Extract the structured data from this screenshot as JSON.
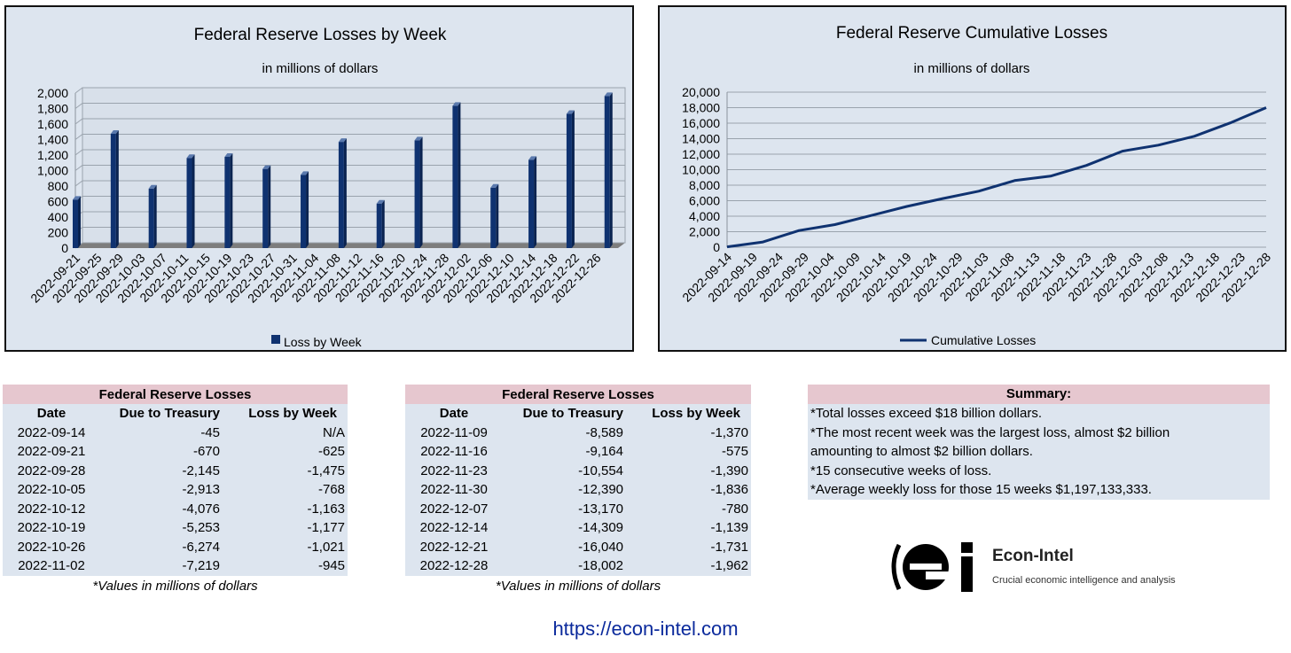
{
  "colors": {
    "bar": "#0f3270",
    "line": "#0f3270",
    "panel_bg": "#dde5ef",
    "header_bg": "#e6c7cf",
    "link": "#0b2a9c"
  },
  "chart_data": [
    {
      "type": "bar",
      "title": "Federal Reserve Losses by Week",
      "subtitle": "in millions of dollars",
      "categories": [
        "2022-09-21",
        "2022-09-25",
        "2022-09-29",
        "2022-10-03",
        "2022-10-07",
        "2022-10-11",
        "2022-10-15",
        "2022-10-19",
        "2022-10-23",
        "2022-10-27",
        "2022-10-31",
        "2022-11-04",
        "2022-11-08",
        "2022-11-12",
        "2022-11-16",
        "2022-11-20",
        "2022-11-24",
        "2022-11-28",
        "2022-12-02",
        "2022-12-06",
        "2022-12-10",
        "2022-12-14",
        "2022-12-18",
        "2022-12-22",
        "2022-12-26"
      ],
      "series": [
        {
          "name": "Loss by Week",
          "points": [
            {
              "x": "2022-09-21",
              "y": 625
            },
            {
              "x": "2022-09-28",
              "y": 1475
            },
            {
              "x": "2022-10-05",
              "y": 768
            },
            {
              "x": "2022-10-12",
              "y": 1163
            },
            {
              "x": "2022-10-19",
              "y": 1177
            },
            {
              "x": "2022-10-26",
              "y": 1021
            },
            {
              "x": "2022-11-02",
              "y": 945
            },
            {
              "x": "2022-11-09",
              "y": 1370
            },
            {
              "x": "2022-11-16",
              "y": 575
            },
            {
              "x": "2022-11-23",
              "y": 1390
            },
            {
              "x": "2022-11-30",
              "y": 1836
            },
            {
              "x": "2022-12-07",
              "y": 780
            },
            {
              "x": "2022-12-14",
              "y": 1139
            },
            {
              "x": "2022-12-21",
              "y": 1731
            },
            {
              "x": "2022-12-28",
              "y": 1962
            }
          ]
        }
      ],
      "yticks": [
        "0",
        "200",
        "400",
        "600",
        "800",
        "1,000",
        "1,200",
        "1,400",
        "1,600",
        "1,800",
        "2,000"
      ],
      "ylim": [
        0,
        2000
      ],
      "grid": true,
      "legend": "bottom"
    },
    {
      "type": "line",
      "title": "Federal Reserve Cumulative Losses",
      "subtitle": "in millions of dollars",
      "categories": [
        "2022-09-14",
        "2022-09-19",
        "2022-09-24",
        "2022-09-29",
        "2022-10-04",
        "2022-10-09",
        "2022-10-14",
        "2022-10-19",
        "2022-10-24",
        "2022-10-29",
        "2022-11-03",
        "2022-11-08",
        "2022-11-13",
        "2022-11-18",
        "2022-11-23",
        "2022-11-28",
        "2022-12-03",
        "2022-12-08",
        "2022-12-13",
        "2022-12-18",
        "2022-12-23",
        "2022-12-28"
      ],
      "series": [
        {
          "name": "Cumulative Losses",
          "points": [
            {
              "x": "2022-09-14",
              "y": 45
            },
            {
              "x": "2022-09-21",
              "y": 670
            },
            {
              "x": "2022-09-28",
              "y": 2145
            },
            {
              "x": "2022-10-05",
              "y": 2913
            },
            {
              "x": "2022-10-12",
              "y": 4076
            },
            {
              "x": "2022-10-19",
              "y": 5253
            },
            {
              "x": "2022-10-26",
              "y": 6274
            },
            {
              "x": "2022-11-02",
              "y": 7219
            },
            {
              "x": "2022-11-09",
              "y": 8589
            },
            {
              "x": "2022-11-16",
              "y": 9164
            },
            {
              "x": "2022-11-23",
              "y": 10554
            },
            {
              "x": "2022-11-30",
              "y": 12390
            },
            {
              "x": "2022-12-07",
              "y": 13170
            },
            {
              "x": "2022-12-14",
              "y": 14309
            },
            {
              "x": "2022-12-21",
              "y": 16040
            },
            {
              "x": "2022-12-28",
              "y": 18002
            }
          ]
        }
      ],
      "yticks": [
        "0",
        "2,000",
        "4,000",
        "6,000",
        "8,000",
        "10,000",
        "12,000",
        "14,000",
        "16,000",
        "18,000",
        "20,000"
      ],
      "ylim": [
        0,
        20000
      ],
      "grid": true,
      "legend": "bottom"
    }
  ],
  "table1": {
    "title": "Federal Reserve Losses",
    "headers": [
      "Date",
      "Due to Treasury",
      "Loss by Week"
    ],
    "rows": [
      [
        "2022-09-14",
        "-45",
        "N/A"
      ],
      [
        "2022-09-21",
        "-670",
        "-625"
      ],
      [
        "2022-09-28",
        "-2,145",
        "-1,475"
      ],
      [
        "2022-10-05",
        "-2,913",
        "-768"
      ],
      [
        "2022-10-12",
        "-4,076",
        "-1,163"
      ],
      [
        "2022-10-19",
        "-5,253",
        "-1,177"
      ],
      [
        "2022-10-26",
        "-6,274",
        "-1,021"
      ],
      [
        "2022-11-02",
        "-7,219",
        "-945"
      ]
    ],
    "note": "*Values in millions of dollars"
  },
  "table2": {
    "title": "Federal Reserve Losses",
    "headers": [
      "Date",
      "Due to Treasury",
      "Loss by Week"
    ],
    "rows": [
      [
        "2022-11-09",
        "-8,589",
        "-1,370"
      ],
      [
        "2022-11-16",
        "-9,164",
        "-575"
      ],
      [
        "2022-11-23",
        "-10,554",
        "-1,390"
      ],
      [
        "2022-11-30",
        "-12,390",
        "-1,836"
      ],
      [
        "2022-12-07",
        "-13,170",
        "-780"
      ],
      [
        "2022-12-14",
        "-14,309",
        "-1,139"
      ],
      [
        "2022-12-21",
        "-16,040",
        "-1,731"
      ],
      [
        "2022-12-28",
        "-18,002",
        "-1,962"
      ]
    ],
    "note": "*Values in millions of dollars"
  },
  "summary": {
    "title": "Summary:",
    "lines": [
      "*Total losses exceed $18 billion dollars.",
      "*The most recent week was the largest loss, almost $2 billion",
      "amounting to almost $2 billion dollars.",
      "*15 consecutive weeks of loss.",
      "*Average weekly loss for those 15 weeks $1,197,133,333."
    ]
  },
  "logo": {
    "name": "Econ-Intel",
    "tagline": "Crucial economic intelligence and analysis",
    "mark": "ei"
  },
  "link": "https://econ-intel.com"
}
